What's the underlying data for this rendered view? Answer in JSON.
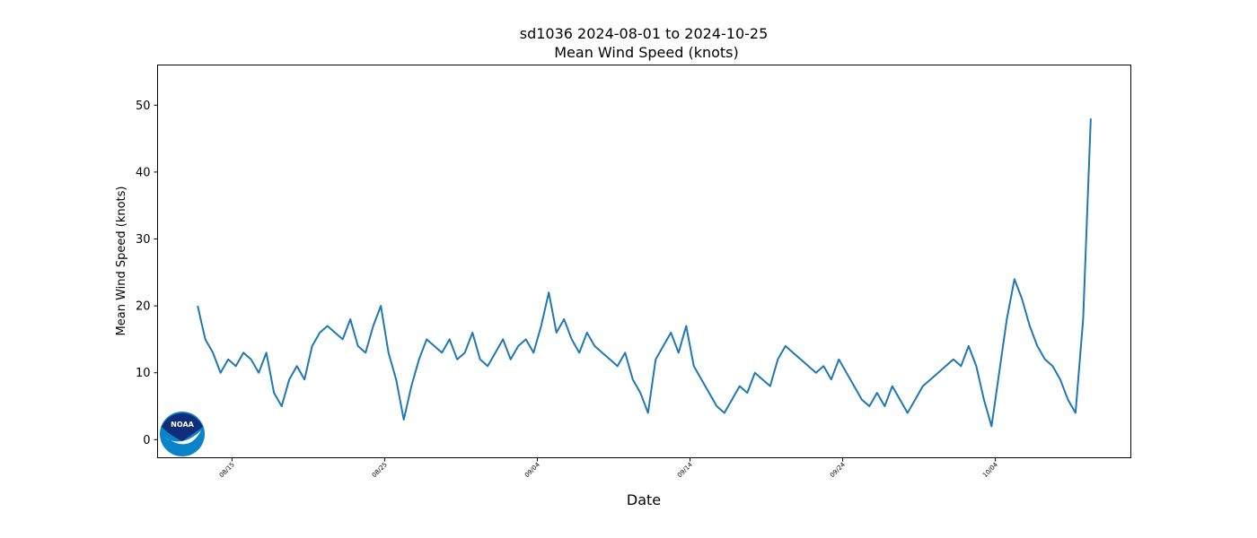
{
  "chart_data": {
    "type": "line",
    "title": "sd1036 2024-08-01 to 2024-10-25",
    "subtitle": "Mean Wind Speed (knots)",
    "x_label": "Date",
    "y_label": "Mean Wind Speed (knots)",
    "logo": "NOAA",
    "grid": false,
    "xlim": [
      "2024-08-10 03:00",
      "2024-10-12 21:00"
    ],
    "xticks": [
      {
        "value": "2024-08-15",
        "label": "08/15"
      },
      {
        "value": "2024-08-25",
        "label": "08/25"
      },
      {
        "value": "2024-09-04",
        "label": "09/04"
      },
      {
        "value": "2024-09-14",
        "label": "09/14"
      },
      {
        "value": "2024-09-24",
        "label": "09/24"
      },
      {
        "value": "2024-10-04",
        "label": "10/04"
      }
    ],
    "ylim": [
      -2.7,
      56
    ],
    "yticks": [
      0,
      10,
      20,
      30,
      40,
      50
    ],
    "x": [
      "2024-08-12 18:00",
      "2024-08-13 06:00",
      "2024-08-13 18:00",
      "2024-08-14 06:00",
      "2024-08-14 18:00",
      "2024-08-15 06:00",
      "2024-08-15 18:00",
      "2024-08-16 06:00",
      "2024-08-16 18:00",
      "2024-08-17 06:00",
      "2024-08-17 18:00",
      "2024-08-18 06:00",
      "2024-08-18 18:00",
      "2024-08-19 06:00",
      "2024-08-19 18:00",
      "2024-08-20 06:00",
      "2024-08-20 18:00",
      "2024-08-21 06:00",
      "2024-08-21 18:00",
      "2024-08-22 06:00",
      "2024-08-22 18:00",
      "2024-08-23 06:00",
      "2024-08-23 18:00",
      "2024-08-24 06:00",
      "2024-08-24 18:00",
      "2024-08-25 06:00",
      "2024-08-25 18:00",
      "2024-08-26 06:00",
      "2024-08-26 18:00",
      "2024-08-27 06:00",
      "2024-08-27 18:00",
      "2024-08-28 06:00",
      "2024-08-28 18:00",
      "2024-08-29 06:00",
      "2024-08-29 18:00",
      "2024-08-30 06:00",
      "2024-08-30 18:00",
      "2024-08-31 06:00",
      "2024-08-31 18:00",
      "2024-09-01 06:00",
      "2024-09-01 18:00",
      "2024-09-02 06:00",
      "2024-09-02 18:00",
      "2024-09-03 06:00",
      "2024-09-03 18:00",
      "2024-09-04 06:00",
      "2024-09-04 18:00",
      "2024-09-05 06:00",
      "2024-09-05 18:00",
      "2024-09-06 06:00",
      "2024-09-06 18:00",
      "2024-09-07 06:00",
      "2024-09-07 18:00",
      "2024-09-08 06:00",
      "2024-09-08 18:00",
      "2024-09-09 06:00",
      "2024-09-09 18:00",
      "2024-09-10 06:00",
      "2024-09-10 18:00",
      "2024-09-11 06:00",
      "2024-09-11 18:00",
      "2024-09-12 06:00",
      "2024-09-12 18:00",
      "2024-09-13 06:00",
      "2024-09-13 18:00",
      "2024-09-14 06:00",
      "2024-09-14 18:00",
      "2024-09-15 06:00",
      "2024-09-15 18:00",
      "2024-09-16 06:00",
      "2024-09-16 18:00",
      "2024-09-17 06:00",
      "2024-09-17 18:00",
      "2024-09-18 06:00",
      "2024-09-18 18:00",
      "2024-09-19 06:00",
      "2024-09-19 18:00",
      "2024-09-20 06:00",
      "2024-09-20 18:00",
      "2024-09-21 06:00",
      "2024-09-21 18:00",
      "2024-09-22 06:00",
      "2024-09-22 18:00",
      "2024-09-23 06:00",
      "2024-09-23 18:00",
      "2024-09-24 06:00",
      "2024-09-24 18:00",
      "2024-09-25 06:00",
      "2024-09-25 18:00",
      "2024-09-26 06:00",
      "2024-09-26 18:00",
      "2024-09-27 06:00",
      "2024-09-27 18:00",
      "2024-09-28 06:00",
      "2024-09-28 18:00",
      "2024-09-29 06:00",
      "2024-09-29 18:00",
      "2024-09-30 06:00",
      "2024-09-30 18:00",
      "2024-10-01 06:00",
      "2024-10-01 18:00",
      "2024-10-02 06:00",
      "2024-10-02 18:00",
      "2024-10-03 06:00",
      "2024-10-03 18:00",
      "2024-10-04 06:00",
      "2024-10-04 18:00",
      "2024-10-05 06:00",
      "2024-10-05 18:00",
      "2024-10-06 06:00",
      "2024-10-06 18:00",
      "2024-10-07 06:00",
      "2024-10-07 18:00",
      "2024-10-08 06:00",
      "2024-10-08 18:00",
      "2024-10-09 06:00",
      "2024-10-09 18:00",
      "2024-10-10 06:00"
    ],
    "series": [
      {
        "name": "Mean Wind Speed (knots)",
        "color": "#1f77b4",
        "values": [
          20,
          15,
          13,
          10,
          12,
          11,
          13,
          12,
          10,
          13,
          7,
          5,
          9,
          11,
          9,
          14,
          16,
          17,
          16,
          15,
          18,
          14,
          13,
          17,
          20,
          13,
          9,
          3,
          8,
          12,
          15,
          14,
          13,
          15,
          12,
          13,
          16,
          12,
          11,
          13,
          15,
          12,
          14,
          15,
          13,
          17,
          22,
          16,
          18,
          15,
          13,
          16,
          14,
          13,
          12,
          11,
          13,
          9,
          7,
          4,
          12,
          14,
          16,
          13,
          17,
          11,
          9,
          7,
          5,
          4,
          6,
          8,
          7,
          10,
          9,
          8,
          12,
          14,
          13,
          12,
          11,
          10,
          11,
          9,
          12,
          10,
          8,
          6,
          5,
          7,
          5,
          8,
          6,
          4,
          6,
          8,
          9,
          10,
          11,
          12,
          11,
          14,
          11,
          6,
          2,
          10,
          18,
          24,
          21,
          17,
          14,
          12,
          11,
          9,
          6,
          4,
          18,
          48
        ]
      }
    ]
  }
}
